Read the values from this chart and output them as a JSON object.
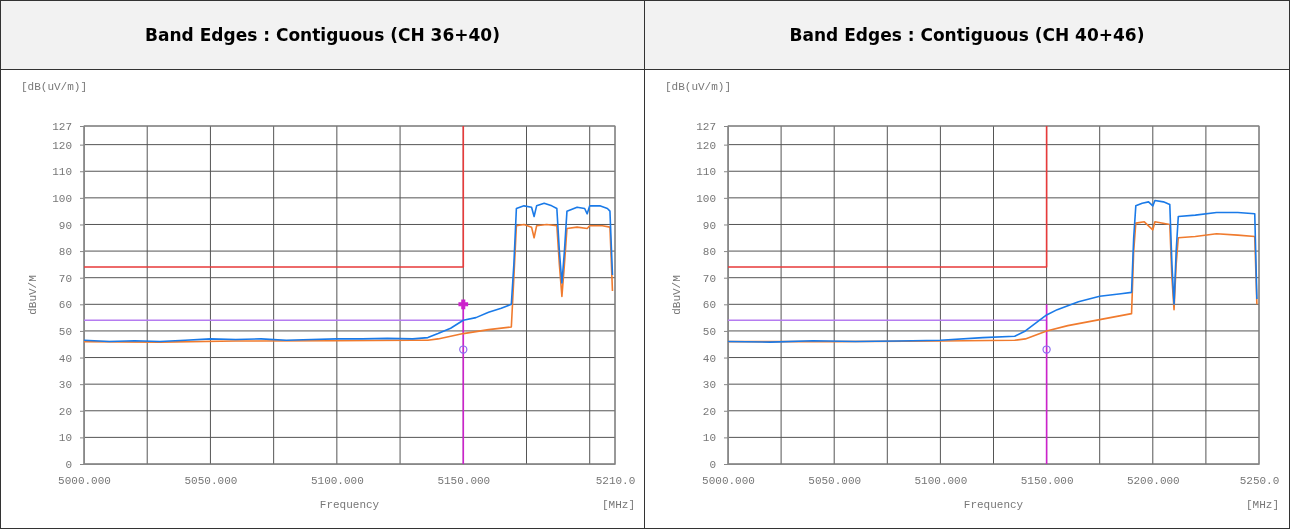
{
  "chart_data": [
    {
      "type": "line",
      "title": "Band Edges : Contiguous (CH 36+40)",
      "xlabel": "Frequency",
      "ylabel": "dBuV/M",
      "annotations": [
        "[dB(uV/m)]",
        "[MHz]"
      ],
      "xlim": [
        5000,
        5210
      ],
      "xticks": [
        {
          "value": 5000,
          "label": "5000.000"
        },
        {
          "value": 5025,
          "label": null
        },
        {
          "value": 5050,
          "label": "5050.000"
        },
        {
          "value": 5075,
          "label": null
        },
        {
          "value": 5100,
          "label": "5100.000"
        },
        {
          "value": 5125,
          "label": null
        },
        {
          "value": 5150,
          "label": "5150.000"
        },
        {
          "value": 5175,
          "label": null
        },
        {
          "value": 5200,
          "label": null
        },
        {
          "value": 5210,
          "label": "5210.0"
        }
      ],
      "ylim": [
        0,
        127
      ],
      "yticks": [
        0,
        10,
        20,
        30,
        40,
        50,
        60,
        70,
        80,
        90,
        100,
        110,
        120,
        127
      ],
      "grid": true,
      "line_style": "solid",
      "series": [
        {
          "color": "#e83a3a",
          "x": [
            5000,
            5150,
            5150
          ],
          "values": [
            74,
            74,
            127
          ]
        },
        {
          "color": "#b57cf0",
          "x": [
            5000,
            5150
          ],
          "values": [
            54,
            54
          ]
        },
        {
          "color": "#cc22cc",
          "x": [
            5150,
            5150
          ],
          "values": [
            0,
            60
          ]
        },
        {
          "color": "#f07b2e",
          "x": [
            5000,
            5030,
            5060,
            5100,
            5130,
            5136,
            5140,
            5150,
            5160,
            5169,
            5170,
            5171,
            5174,
            5177,
            5178,
            5179,
            5183,
            5187,
            5188,
            5189,
            5190,
            5191,
            5195,
            5199,
            5200,
            5205,
            5208,
            5209
          ],
          "values": [
            46,
            45.8,
            46.2,
            46.3,
            46.5,
            46.5,
            47,
            49,
            50.5,
            51.5,
            70,
            89.5,
            90,
            89,
            85,
            89.5,
            90,
            89.5,
            75,
            63,
            75,
            88.5,
            89,
            88.5,
            89.5,
            89.5,
            89,
            65
          ]
        },
        {
          "color": "#1a7ae8",
          "x": [
            5000,
            5010,
            5020,
            5030,
            5040,
            5050,
            5060,
            5070,
            5080,
            5090,
            5100,
            5110,
            5120,
            5130,
            5136,
            5140,
            5145,
            5150,
            5155,
            5160,
            5165,
            5169,
            5170,
            5171,
            5174,
            5177,
            5178,
            5179,
            5182,
            5185,
            5187,
            5188,
            5189,
            5190,
            5191,
            5195,
            5198,
            5199,
            5200,
            5204,
            5207,
            5208,
            5209
          ],
          "values": [
            46.5,
            46,
            46.3,
            46,
            46.5,
            47,
            46.8,
            47,
            46.5,
            46.8,
            47,
            47,
            47.2,
            47,
            47.5,
            49,
            51,
            54,
            55,
            57,
            58.5,
            60,
            75,
            96,
            97,
            96.5,
            93,
            97,
            98,
            97,
            96,
            80,
            68,
            80,
            95,
            96.5,
            96,
            94,
            97,
            97,
            96,
            95,
            71
          ]
        },
        {
          "type": "scatter",
          "marker": "circle",
          "color": "#8a6cf0",
          "x": [
            5150
          ],
          "values": [
            43
          ]
        },
        {
          "type": "scatter",
          "marker": "cross",
          "color": "#cc22cc",
          "x": [
            5150
          ],
          "values": [
            60
          ]
        }
      ]
    },
    {
      "type": "line",
      "title": "Band Edges : Contiguous (CH 40+46)",
      "xlabel": "Frequency",
      "ylabel": "dBuV/M",
      "annotations": [
        "[dB(uV/m)]",
        "[MHz]"
      ],
      "xlim": [
        5000,
        5250
      ],
      "xticks": [
        {
          "value": 5000,
          "label": "5000.000"
        },
        {
          "value": 5025,
          "label": null
        },
        {
          "value": 5050,
          "label": "5050.000"
        },
        {
          "value": 5075,
          "label": null
        },
        {
          "value": 5100,
          "label": "5100.000"
        },
        {
          "value": 5125,
          "label": null
        },
        {
          "value": 5150,
          "label": "5150.000"
        },
        {
          "value": 5175,
          "label": null
        },
        {
          "value": 5200,
          "label": "5200.000"
        },
        {
          "value": 5225,
          "label": null
        },
        {
          "value": 5250,
          "label": "5250.0"
        }
      ],
      "ylim": [
        0,
        127
      ],
      "yticks": [
        0,
        10,
        20,
        30,
        40,
        50,
        60,
        70,
        80,
        90,
        100,
        110,
        120,
        127
      ],
      "grid": true,
      "line_style": "solid",
      "series": [
        {
          "color": "#e83a3a",
          "x": [
            5000,
            5150,
            5150
          ],
          "values": [
            74,
            74,
            127
          ]
        },
        {
          "color": "#b57cf0",
          "x": [
            5000,
            5150
          ],
          "values": [
            54,
            54
          ]
        },
        {
          "color": "#cc22cc",
          "x": [
            5150,
            5150
          ],
          "values": [
            0,
            60
          ]
        },
        {
          "color": "#f07b2e",
          "x": [
            5000,
            5050,
            5100,
            5135,
            5140,
            5150,
            5160,
            5170,
            5180,
            5190,
            5191,
            5192,
            5196,
            5200,
            5201,
            5208,
            5209,
            5210,
            5211,
            5212,
            5220,
            5230,
            5240,
            5248,
            5249
          ],
          "values": [
            46,
            46,
            46.2,
            46.5,
            47,
            50,
            52,
            53.5,
            55,
            56.5,
            80,
            90.5,
            91,
            88,
            91,
            90,
            70,
            58,
            75,
            85,
            85.5,
            86.5,
            86,
            85.5,
            60
          ]
        },
        {
          "color": "#1a7ae8",
          "x": [
            5000,
            5020,
            5040,
            5060,
            5080,
            5100,
            5120,
            5135,
            5140,
            5145,
            5150,
            5155,
            5160,
            5165,
            5170,
            5175,
            5180,
            5185,
            5190,
            5191,
            5192,
            5195,
            5198,
            5200,
            5201,
            5205,
            5208,
            5209,
            5210,
            5211,
            5212,
            5220,
            5230,
            5240,
            5248,
            5249
          ],
          "values": [
            46,
            45.8,
            46.3,
            46,
            46.2,
            46.5,
            47.5,
            48,
            50,
            53,
            56,
            58,
            59.5,
            61,
            62,
            63,
            63.5,
            64,
            64.5,
            85,
            97,
            98,
            98.5,
            97,
            99,
            98.5,
            97.5,
            75,
            60,
            80,
            93,
            93.5,
            94.5,
            94.5,
            94,
            62
          ]
        },
        {
          "type": "scatter",
          "marker": "circle",
          "color": "#8a6cf0",
          "x": [
            5150
          ],
          "values": [
            43
          ]
        }
      ]
    }
  ]
}
